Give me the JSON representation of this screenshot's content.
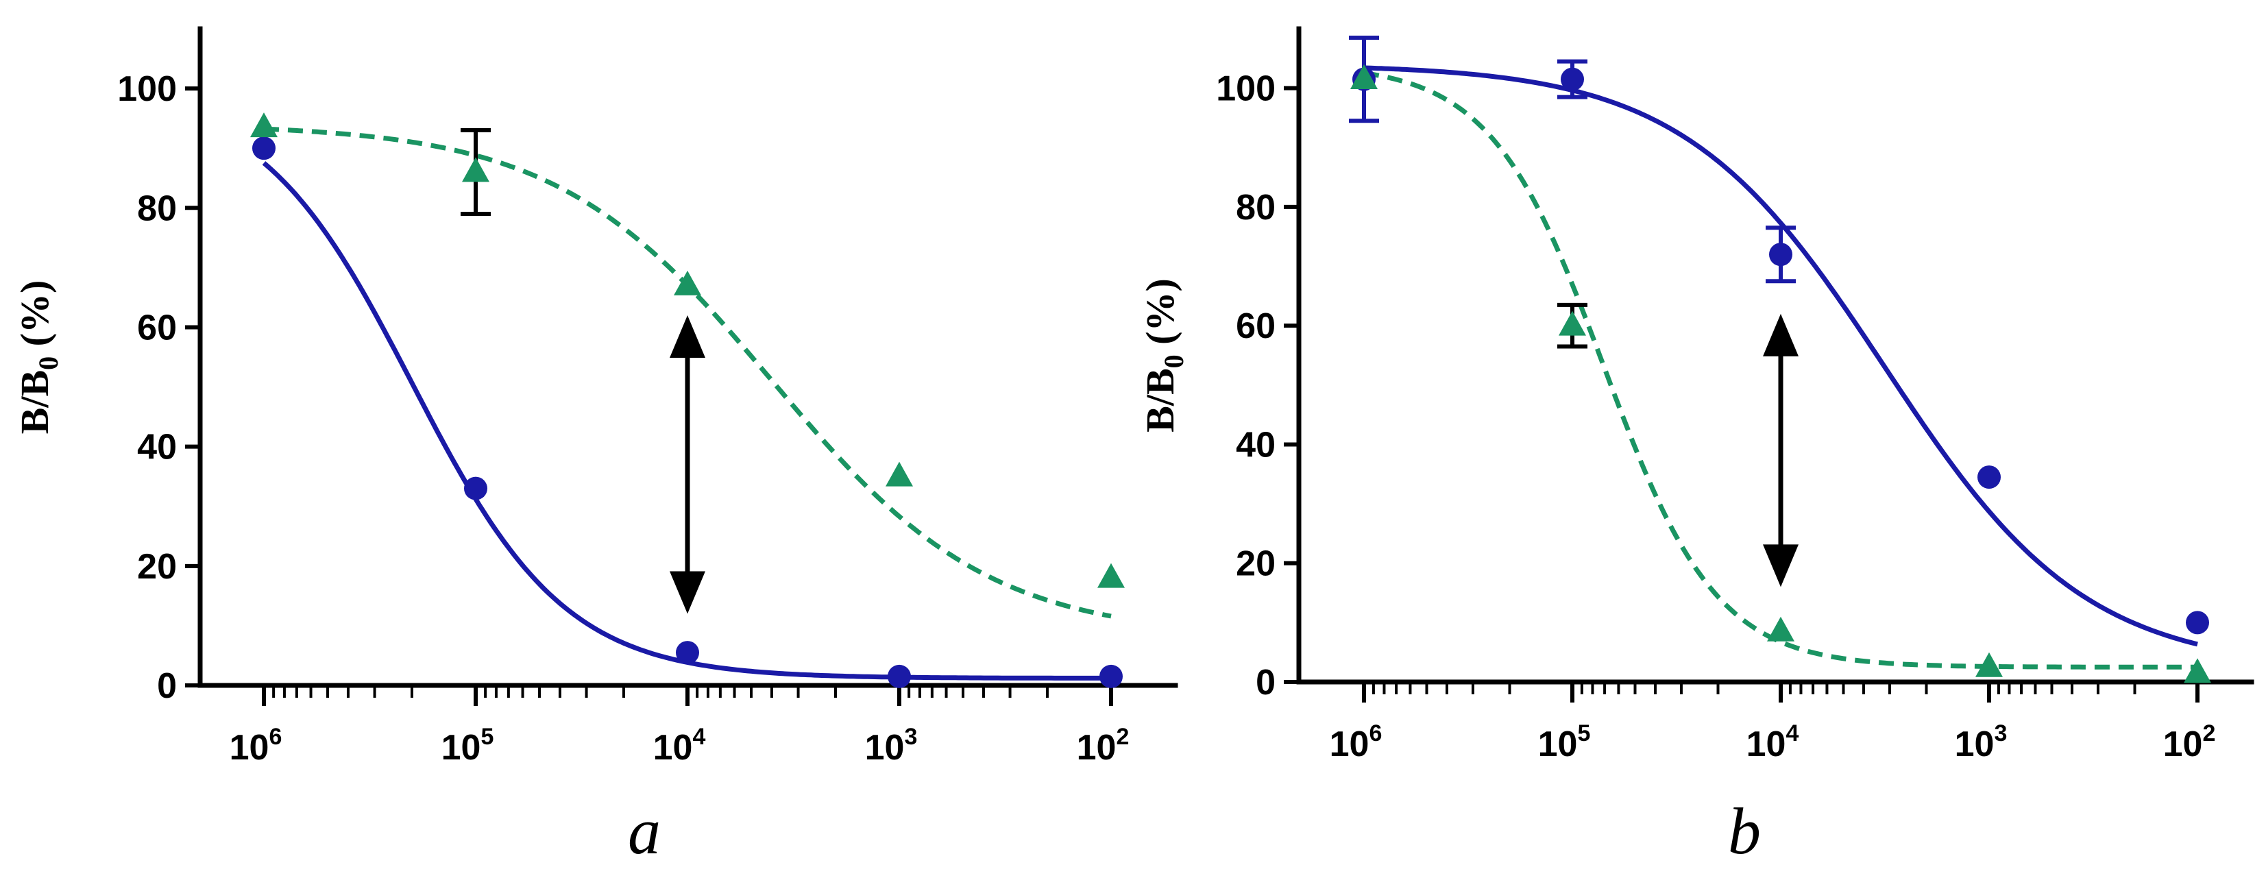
{
  "chart_data": [
    {
      "type": "line",
      "panel_label": "a",
      "ylabel": {
        "main": "B/B",
        "sub": "0",
        "unit": " (%)"
      },
      "xlabel": "",
      "x_scale": "log",
      "x_reversed": true,
      "x_ticks": [
        {
          "base": "10",
          "exp": "6",
          "value": 1000000
        },
        {
          "base": "10",
          "exp": "5",
          "value": 100000
        },
        {
          "base": "10",
          "exp": "4",
          "value": 10000
        },
        {
          "base": "10",
          "exp": "3",
          "value": 1000
        },
        {
          "base": "10",
          "exp": "2",
          "value": 100
        }
      ],
      "y_ticks": [
        0,
        20,
        40,
        60,
        80,
        100
      ],
      "ylim": [
        0,
        110
      ],
      "series": [
        {
          "name": "circle",
          "marker": "circle",
          "line_style": "solid",
          "color": "#1a1aa6",
          "points": [
            {
              "x": 1000000,
              "y": 90,
              "err": 0
            },
            {
              "x": 100000,
              "y": 33,
              "err": 0
            },
            {
              "x": 10000,
              "y": 5.5,
              "err": 0
            },
            {
              "x": 1000,
              "y": 1.5,
              "err": 0
            },
            {
              "x": 100,
              "y": 1.5,
              "err": 0
            }
          ],
          "fit": {
            "top": 100,
            "bottom": 1.2,
            "log_ic50": 5.3,
            "hill": 1.2
          }
        },
        {
          "name": "triangle",
          "marker": "triangle",
          "line_style": "dashed",
          "color": "#1a9462",
          "points": [
            {
              "x": 1000000,
              "y": 93.5,
              "err": 0
            },
            {
              "x": 100000,
              "y": 86,
              "err": 7,
              "err_color": "#000000"
            },
            {
              "x": 10000,
              "y": 67,
              "err": 0
            },
            {
              "x": 1000,
              "y": 35,
              "err": 0
            },
            {
              "x": 100,
              "y": 18,
              "err": 0
            }
          ],
          "fit": {
            "top": 94,
            "bottom": 8,
            "log_ic50": 3.6,
            "hill": 0.85
          }
        }
      ],
      "arrow": {
        "x": 10000,
        "y_from": 62,
        "y_to": 12,
        "color": "#000000"
      }
    },
    {
      "type": "line",
      "panel_label": "b",
      "ylabel": {
        "main": "B/B",
        "sub": "0",
        "unit": " (%)"
      },
      "xlabel": "",
      "x_scale": "log",
      "x_reversed": true,
      "x_ticks": [
        {
          "base": "10",
          "exp": "6",
          "value": 1000000
        },
        {
          "base": "10",
          "exp": "5",
          "value": 100000
        },
        {
          "base": "10",
          "exp": "4",
          "value": 10000
        },
        {
          "base": "10",
          "exp": "3",
          "value": 1000
        },
        {
          "base": "10",
          "exp": "2",
          "value": 100
        }
      ],
      "y_ticks": [
        0,
        20,
        40,
        60,
        80,
        100
      ],
      "ylim": [
        0,
        110
      ],
      "series": [
        {
          "name": "circle",
          "marker": "circle",
          "line_style": "solid",
          "color": "#1a1aa6",
          "points": [
            {
              "x": 1000000,
              "y": 101.5,
              "err": 7
            },
            {
              "x": 100000,
              "y": 101.5,
              "err": 3
            },
            {
              "x": 10000,
              "y": 72,
              "err": 4.5
            },
            {
              "x": 1000,
              "y": 34.5,
              "err": 0
            },
            {
              "x": 100,
              "y": 10,
              "err": 0
            }
          ],
          "fit": {
            "top": 104,
            "bottom": 2,
            "log_ic50": 3.5,
            "hill": 0.9
          }
        },
        {
          "name": "triangle",
          "marker": "triangle",
          "line_style": "dashed",
          "color": "#1a9462",
          "points": [
            {
              "x": 1000000,
              "y": 101.5,
              "err": 0
            },
            {
              "x": 100000,
              "y": 60,
              "err": 3.5,
              "err_color": "#000000"
            },
            {
              "x": 10000,
              "y": 8.5,
              "err": 0
            },
            {
              "x": 1000,
              "y": 2.5,
              "err": 0
            },
            {
              "x": 100,
              "y": 1.5,
              "err": 0
            }
          ],
          "fit": {
            "top": 104,
            "bottom": 2.5,
            "log_ic50": 4.85,
            "hill": 1.6
          }
        }
      ],
      "arrow": {
        "x": 10000,
        "y_from": 62,
        "y_to": 16,
        "color": "#000000"
      }
    }
  ]
}
